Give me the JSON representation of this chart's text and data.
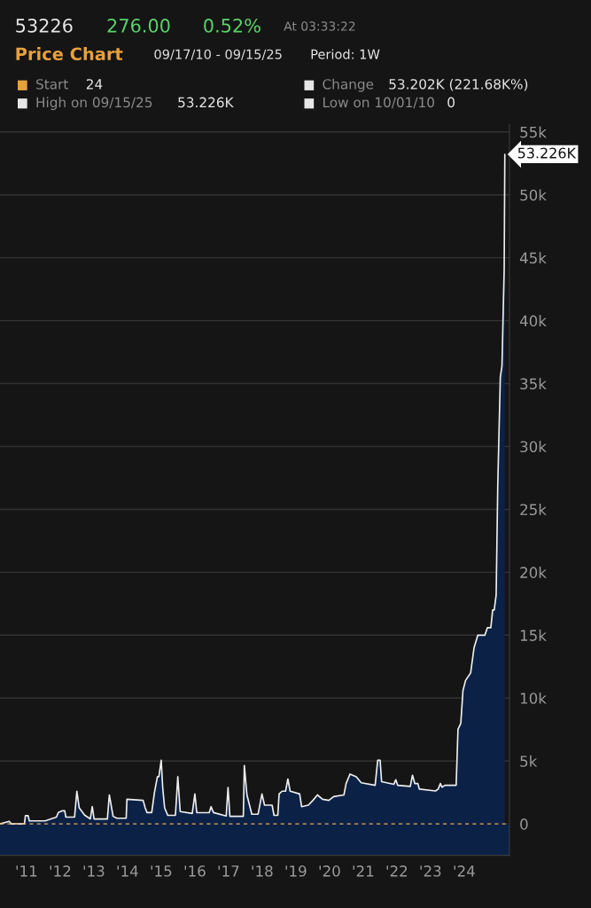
{
  "chart_data": {
    "type": "area",
    "title": "Price Chart",
    "subtitle": "09/17/10 - 09/15/25",
    "annotations": [
      "53226",
      "276.00",
      "0.52%",
      "At 03:33:22",
      "Period: 1W",
      "Start",
      "24",
      "Change",
      "53.202K (221.68K%)",
      "High on 09/15/25",
      "53.226K",
      "Low on 10/01/10",
      "0",
      {
        "text": "53.226K",
        "x": "2025-09-15",
        "y": 53226
      }
    ],
    "x": [
      "2010-09-17",
      "2010-12-27",
      "2011-01-17",
      "2011-06-09",
      "2011-06-20",
      "2011-07-19",
      "2011-08-01",
      "2012-01-20",
      "2012-05-21",
      "2012-06-11",
      "2012-07-21",
      "2012-08-19",
      "2012-09-01",
      "2012-12-04",
      "2012-12-29",
      "2013-01-23",
      "2013-03-23",
      "2013-05-24",
      "2013-06-14",
      "2013-07-04",
      "2013-11-25",
      "2013-12-16",
      "2014-01-26",
      "2014-03-07",
      "2014-06-17",
      "2014-06-25",
      "2014-12-18",
      "2015-01-09",
      "2015-01-29",
      "2015-03-21",
      "2015-04-19",
      "2015-05-22",
      "2015-06-07",
      "2015-07-02",
      "2015-07-18",
      "2015-08-08",
      "2015-09-11",
      "2015-12-03",
      "2015-12-29",
      "2016-01-24",
      "2016-06-03",
      "2016-07-01",
      "2016-07-22",
      "2016-12-04",
      "2016-12-24",
      "2017-01-19",
      "2017-06-06",
      "2017-06-26",
      "2017-07-16",
      "2017-12-09",
      "2017-12-20",
      "2018-01-17",
      "2018-03-11",
      "2018-05-18",
      "2018-06-29",
      "2018-07-27",
      "2018-10-17",
      "2018-11-07",
      "2018-12-18",
      "2019-01-01",
      "2019-02-03",
      "2019-03-12",
      "2019-04-06",
      "2019-05-01",
      "2019-08-12",
      "2019-09-02",
      "2019-11-14",
      "2020-01-03",
      "2020-02-21",
      "2020-04-16",
      "2020-06-24",
      "2020-08-15",
      "2020-12-04",
      "2020-12-28",
      "2021-02-08",
      "2021-04-17",
      "2021-06-10",
      "2021-11-08",
      "2021-12-06",
      "2022-01-01",
      "2022-01-17",
      "2022-05-30",
      "2022-06-20",
      "2022-07-10",
      "2022-11-24",
      "2022-12-18",
      "2023-01-12",
      "2023-02-14",
      "2023-03-02",
      "2023-08-25",
      "2023-09-23",
      "2023-10-17",
      "2023-11-03",
      "2023-12-05",
      "2024-04-05",
      "2024-04-25",
      "2024-05-25",
      "2024-06-18",
      "2024-07-16",
      "2024-09-09",
      "2024-10-16",
      "2024-11-26",
      "2025-02-11",
      "2025-03-10",
      "2025-04-16",
      "2025-05-06",
      "2025-05-23",
      "2025-06-13",
      "2025-06-30",
      "2025-07-28",
      "2025-08-15",
      "2025-09-08",
      "2025-09-15"
    ],
    "series": [
      {
        "color": "#0b2146",
        "values": [
          0,
          200,
          0,
          0,
          650,
          650,
          240,
          240,
          540,
          900,
          1040,
          1040,
          540,
          540,
          2600,
          1280,
          700,
          400,
          1370,
          390,
          390,
          2300,
          600,
          450,
          450,
          1960,
          1870,
          1280,
          900,
          900,
          2470,
          3750,
          3750,
          5060,
          2900,
          1280,
          680,
          680,
          3750,
          980,
          830,
          2380,
          890,
          890,
          1370,
          900,
          630,
          2900,
          600,
          600,
          4640,
          2300,
          770,
          770,
          2380,
          1490,
          1490,
          680,
          680,
          2380,
          2600,
          2600,
          3570,
          2600,
          2380,
          1370,
          1490,
          1870,
          2300,
          1960,
          1870,
          2170,
          2300,
          3210,
          3960,
          3750,
          3270,
          3070,
          5060,
          5060,
          3360,
          3150,
          3510,
          3070,
          2980,
          3870,
          3210,
          3210,
          2770,
          2620,
          2770,
          3210,
          2920,
          3070,
          3070,
          7530,
          7980,
          10600,
          11400,
          12000,
          14000,
          15000,
          15000,
          15600,
          15600,
          17000,
          17000,
          18200,
          26800,
          35500,
          36400,
          44100,
          53226
        ]
      }
    ],
    "xlim": [
      "2010-09-17",
      "2025-11-04"
    ],
    "xticks": [
      {
        "value": "2011-07-01",
        "label": "'11"
      },
      {
        "value": "2012-07-01",
        "label": "'12"
      },
      {
        "value": "2013-07-01",
        "label": "'13"
      },
      {
        "value": "2014-07-01",
        "label": "'14"
      },
      {
        "value": "2015-07-01",
        "label": "'15"
      },
      {
        "value": "2016-07-01",
        "label": "'16"
      },
      {
        "value": "2017-07-01",
        "label": "'17"
      },
      {
        "value": "2018-07-01",
        "label": "'18"
      },
      {
        "value": "2019-07-01",
        "label": "'19"
      },
      {
        "value": "2020-07-01",
        "label": "'20"
      },
      {
        "value": "2021-07-01",
        "label": "'21"
      },
      {
        "value": "2022-07-01",
        "label": "'22"
      },
      {
        "value": "2023-07-01",
        "label": "'23"
      },
      {
        "value": "2024-07-01",
        "label": "'24"
      }
    ],
    "ylim": [
      -2500,
      55600
    ],
    "yticks": [
      0,
      {
        "value": 5000,
        "label": "5k"
      },
      {
        "value": 10000,
        "label": "10k"
      },
      {
        "value": 15000,
        "label": "15k"
      },
      {
        "value": 20000,
        "label": "20k"
      },
      {
        "value": 25000,
        "label": "25k"
      },
      {
        "value": 30000,
        "label": "30k"
      },
      {
        "value": 35000,
        "label": "35k"
      },
      {
        "value": 40000,
        "label": "40k"
      },
      {
        "value": 45000,
        "label": "45k"
      },
      {
        "value": 50000,
        "label": "50k"
      },
      {
        "value": 55000,
        "label": "55k"
      }
    ],
    "bands": [
      {
        "axis": "y",
        "from": -2500,
        "to": 0,
        "color": "#0b2146"
      }
    ],
    "ref_lines": [
      {
        "axis": "y",
        "value": 0,
        "color": "#e8a95c",
        "line_style": "dashed"
      }
    ],
    "grid": "y",
    "legend": false
  }
}
